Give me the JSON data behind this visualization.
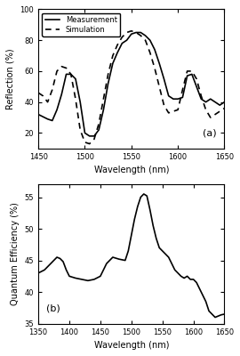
{
  "panel_a": {
    "xlabel": "Wavelength (nm)",
    "ylabel": "Reflection (%)",
    "xlim": [
      1450,
      1650
    ],
    "ylim": [
      10,
      100
    ],
    "yticks": [
      20,
      40,
      60,
      80,
      100
    ],
    "xticks": [
      1450,
      1500,
      1550,
      1600,
      1650
    ],
    "label": "(a)",
    "legend": [
      "Measurement",
      "Simulation"
    ],
    "measurement_x": [
      1450,
      1460,
      1465,
      1470,
      1475,
      1480,
      1485,
      1490,
      1495,
      1500,
      1505,
      1510,
      1515,
      1520,
      1525,
      1530,
      1535,
      1540,
      1545,
      1550,
      1555,
      1560,
      1565,
      1570,
      1575,
      1580,
      1585,
      1590,
      1595,
      1600,
      1605,
      1610,
      1615,
      1620,
      1625,
      1630,
      1635,
      1640,
      1645,
      1650
    ],
    "measurement_y": [
      32,
      29,
      28,
      35,
      45,
      58,
      58,
      55,
      40,
      20,
      18,
      18,
      22,
      35,
      52,
      65,
      72,
      78,
      80,
      84,
      85,
      85,
      83,
      80,
      74,
      65,
      55,
      44,
      42,
      42,
      43,
      57,
      58,
      50,
      42,
      40,
      42,
      40,
      38,
      40
    ],
    "simulation_x": [
      1450,
      1455,
      1460,
      1465,
      1470,
      1475,
      1480,
      1485,
      1490,
      1495,
      1500,
      1505,
      1510,
      1515,
      1520,
      1525,
      1530,
      1535,
      1540,
      1545,
      1550,
      1555,
      1560,
      1565,
      1570,
      1575,
      1580,
      1585,
      1590,
      1595,
      1600,
      1605,
      1610,
      1615,
      1620,
      1625,
      1630,
      1635,
      1640,
      1645,
      1650
    ],
    "simulation_y": [
      46,
      44,
      40,
      48,
      60,
      63,
      62,
      58,
      42,
      22,
      14,
      13,
      16,
      26,
      42,
      58,
      70,
      77,
      82,
      85,
      86,
      85,
      83,
      80,
      72,
      62,
      50,
      38,
      33,
      34,
      35,
      48,
      60,
      60,
      55,
      44,
      35,
      30,
      32,
      34,
      36
    ]
  },
  "panel_b": {
    "xlabel": "Wavelength (nm)",
    "ylabel": "Quantum Efficiency (%)",
    "xlim": [
      1350,
      1650
    ],
    "ylim": [
      35,
      57
    ],
    "yticks": [
      35,
      40,
      45,
      50,
      55
    ],
    "xticks": [
      1350,
      1400,
      1450,
      1500,
      1550,
      1600,
      1650
    ],
    "label": "(b)",
    "qe_x": [
      1350,
      1360,
      1365,
      1370,
      1375,
      1380,
      1385,
      1390,
      1395,
      1400,
      1410,
      1420,
      1430,
      1440,
      1450,
      1455,
      1460,
      1465,
      1470,
      1480,
      1490,
      1495,
      1500,
      1505,
      1510,
      1515,
      1520,
      1525,
      1530,
      1535,
      1540,
      1545,
      1550,
      1560,
      1565,
      1570,
      1575,
      1580,
      1585,
      1590,
      1595,
      1600,
      1605,
      1610,
      1615,
      1620,
      1625,
      1630,
      1635,
      1640,
      1645,
      1650
    ],
    "qe_y": [
      43,
      43.5,
      44,
      44.5,
      45,
      45.5,
      45.3,
      44.8,
      43.5,
      42.5,
      42.2,
      42.0,
      41.8,
      42.0,
      42.5,
      43.5,
      44.5,
      45.0,
      45.5,
      45.2,
      45.0,
      46.5,
      49.0,
      51.5,
      53.5,
      55.0,
      55.5,
      55.2,
      53.0,
      50.5,
      48.5,
      47.0,
      46.5,
      45.5,
      44.5,
      43.5,
      43.0,
      42.5,
      42.2,
      42.5,
      42.0,
      42.0,
      41.5,
      40.5,
      39.5,
      38.5,
      37.0,
      36.5,
      36.0,
      36.2,
      36.4,
      36.5
    ]
  },
  "line_color": "#000000",
  "bg_color": "#ffffff",
  "fontsize_label": 7,
  "fontsize_tick": 6,
  "fontsize_legend": 6,
  "fontsize_panel_label": 8
}
